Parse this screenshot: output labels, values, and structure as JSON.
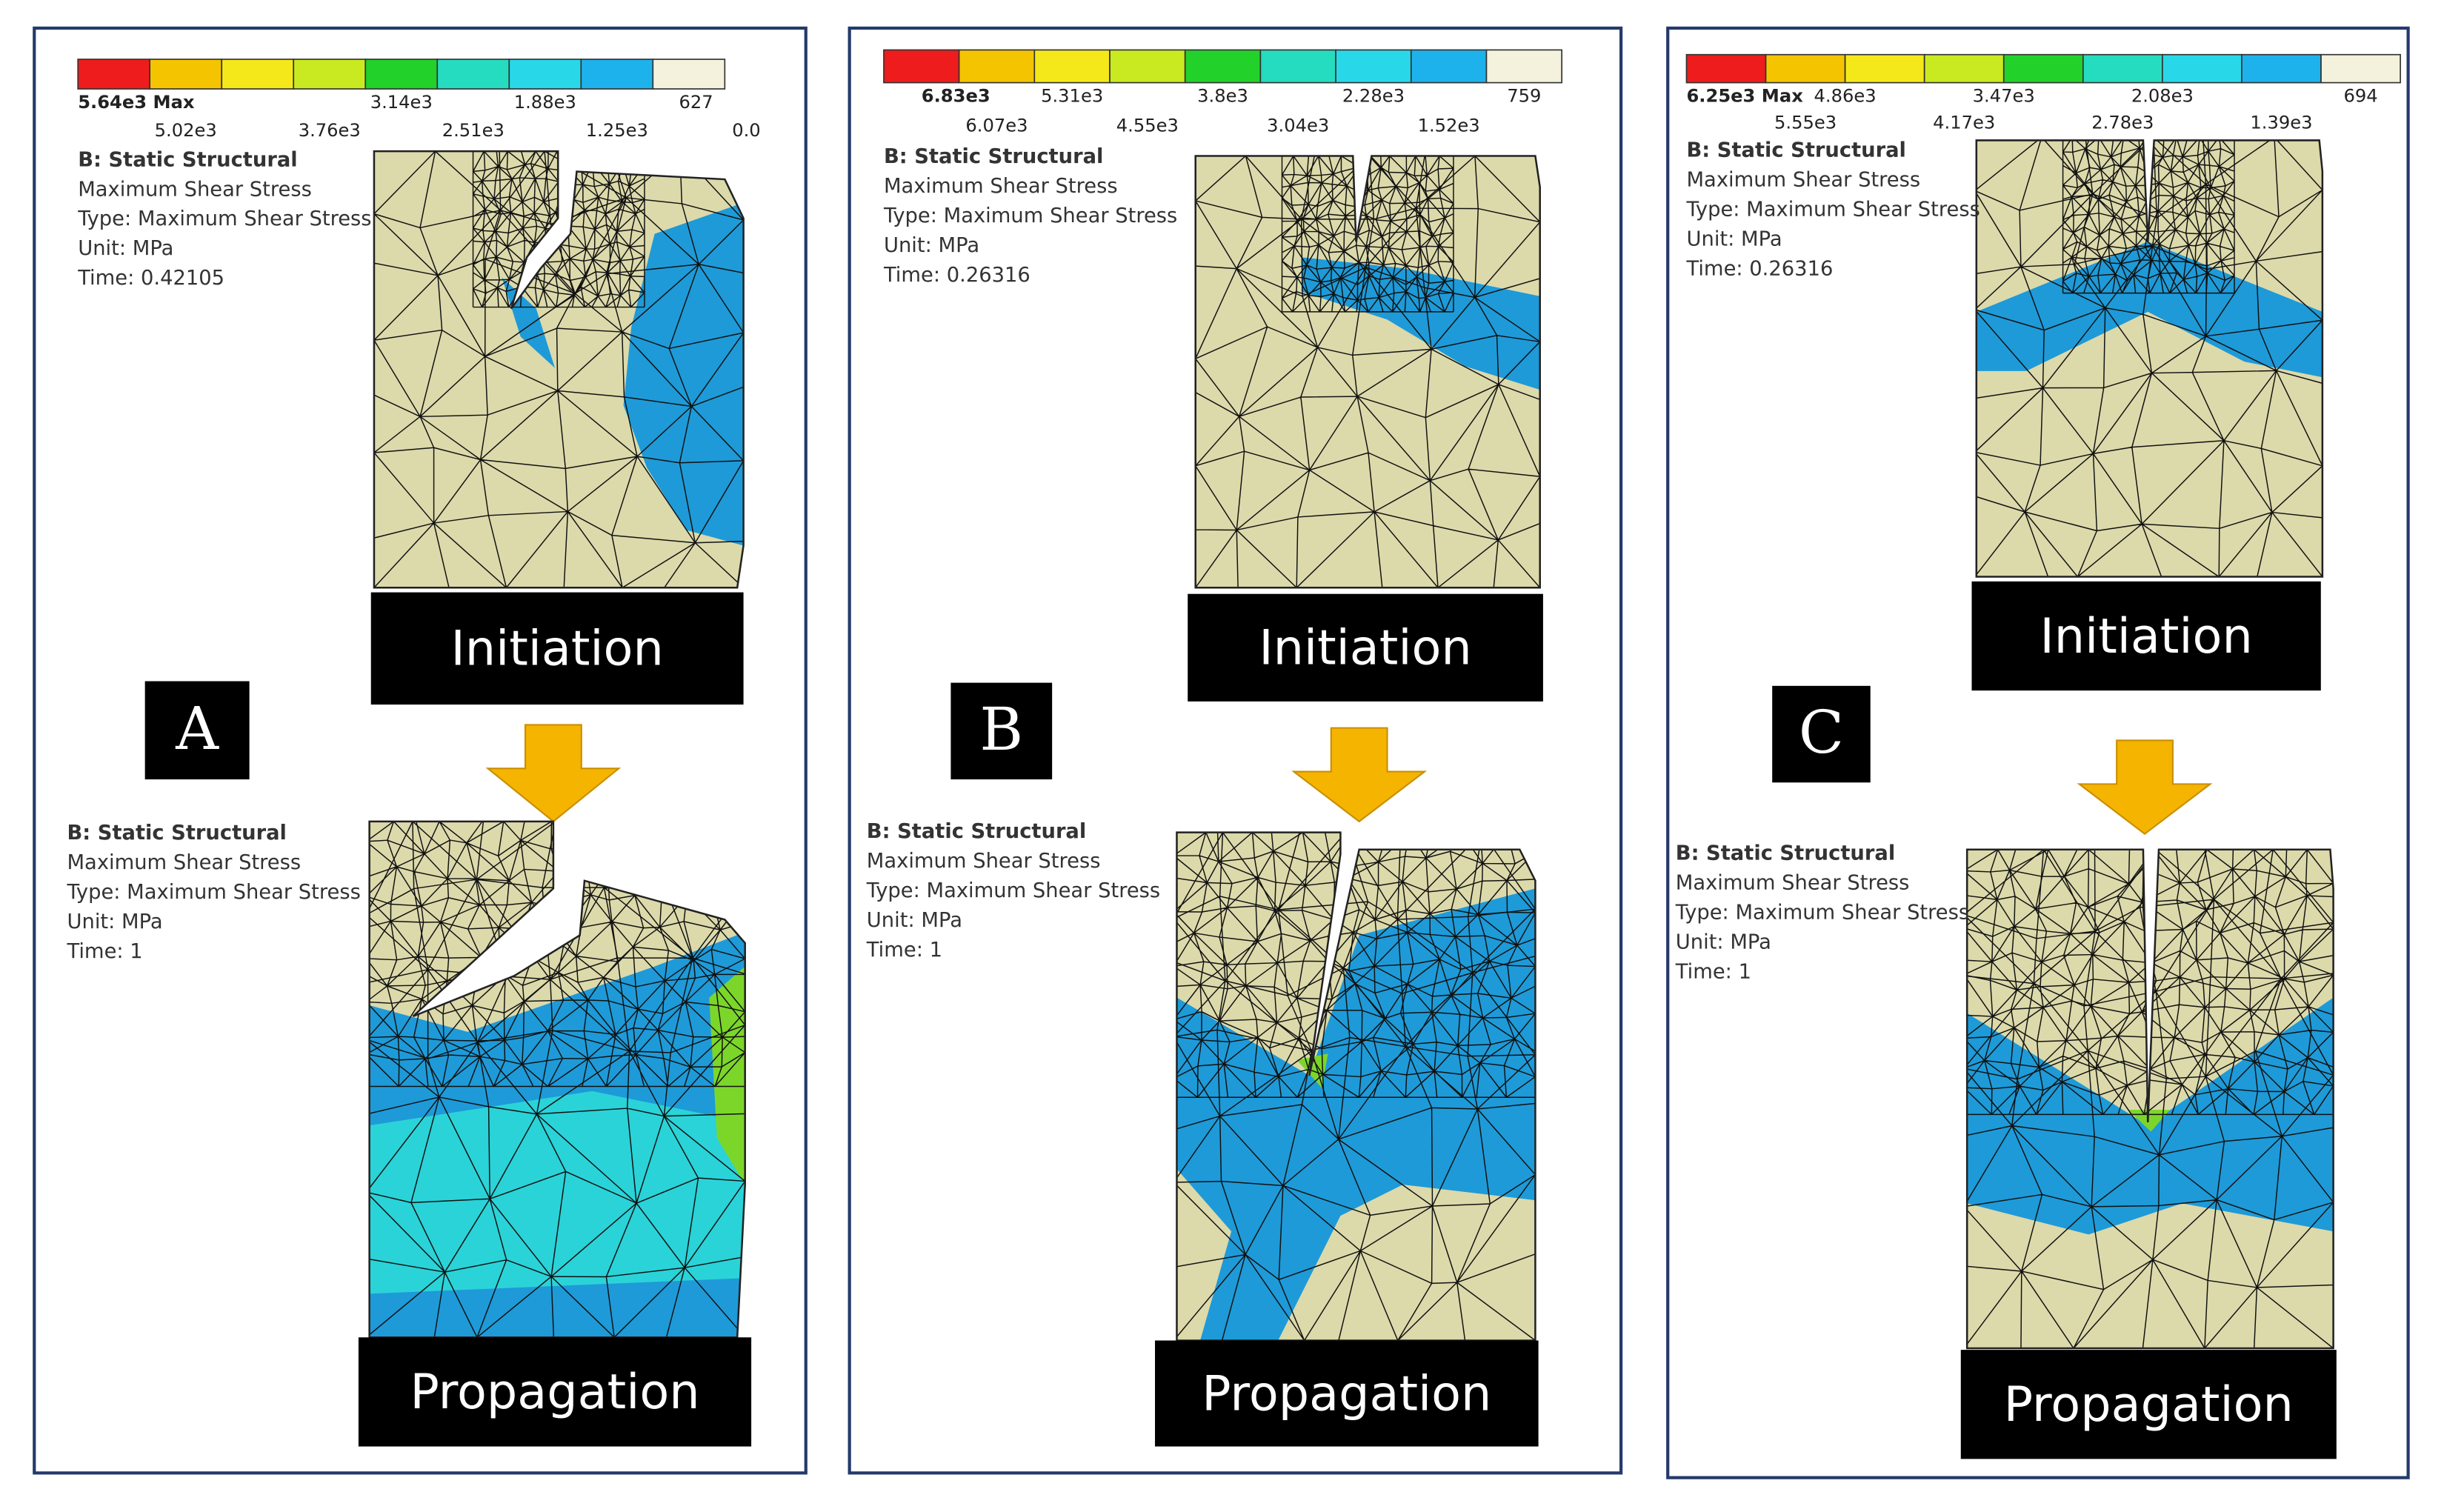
{
  "panels": [
    {
      "letter": "A",
      "legend": {
        "top": [
          "5.64e3 Max",
          "3.14e3",
          "1.88e3",
          "627"
        ],
        "bottom": [
          "5.02e3",
          "3.76e3",
          "2.51e3",
          "1.25e3",
          "0.0"
        ]
      },
      "initiation": {
        "info": [
          "B: Static Structural",
          "Maximum Shear Stress",
          "Type: Maximum Shear Stress",
          "Unit: MPa",
          "Time: 0.42105"
        ],
        "label": "Initiation"
      },
      "propagation": {
        "info": [
          "B: Static Structural",
          "Maximum Shear Stress",
          "Type: Maximum Shear Stress",
          "Unit: MPa",
          "Time: 1"
        ],
        "label": "Propagation"
      }
    },
    {
      "letter": "B",
      "legend": {
        "top": [
          "6.83e3",
          "5.31e3",
          "3.8e3",
          "2.28e3",
          "759"
        ],
        "bottom": [
          "6.07e3",
          "4.55e3",
          "3.04e3",
          "1.52e3"
        ]
      },
      "initiation": {
        "info": [
          "B: Static Structural",
          "Maximum Shear Stress",
          "Type: Maximum Shear Stress",
          "Unit: MPa",
          "Time: 0.26316"
        ],
        "label": "Initiation"
      },
      "propagation": {
        "info": [
          "B: Static Structural",
          "Maximum Shear Stress",
          "Type: Maximum Shear Stress",
          "Unit: MPa",
          "Time: 1"
        ],
        "label": "Propagation"
      }
    },
    {
      "letter": "C",
      "legend": {
        "top": [
          "6.25e3 Max",
          "4.86e3",
          "3.47e3",
          "2.08e3",
          "694"
        ],
        "bottom": [
          "5.55e3",
          "4.17e3",
          "2.78e3",
          "1.39e3"
        ]
      },
      "initiation": {
        "info": [
          "B: Static Structural",
          "Maximum Shear Stress",
          "Type: Maximum Shear Stress",
          "Unit: MPa",
          "Time: 0.26316"
        ],
        "label": "Initiation"
      },
      "propagation": {
        "info": [
          "B: Static Structural",
          "Maximum Shear Stress",
          "Type: Maximum Shear Stress",
          "Unit: MPa",
          "Time: 1"
        ],
        "label": "Propagation"
      }
    }
  ]
}
